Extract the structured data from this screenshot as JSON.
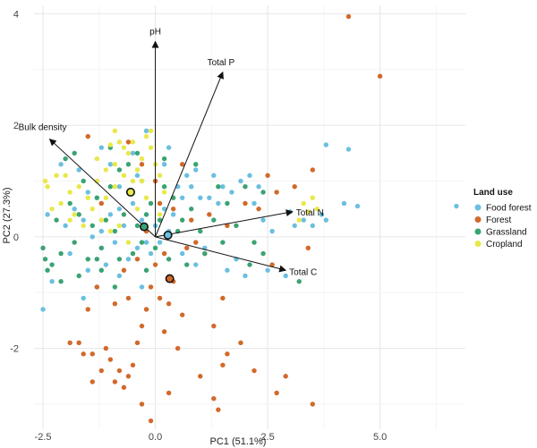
{
  "chart_data": {
    "type": "scatter",
    "subtype": "pca-biplot",
    "xlabel": "PC1 (51.1%)",
    "ylabel": "PC2 (27.3%)",
    "xlim": [
      -2.7,
      6.9
    ],
    "ylim": [
      -3.45,
      4.15
    ],
    "x_ticks": [
      -2.5,
      0.0,
      2.5,
      5.0
    ],
    "x_tick_labels": [
      "-2.5",
      "0.0",
      "2.5",
      "5.0"
    ],
    "y_ticks": [
      -2,
      0,
      2,
      4
    ],
    "y_tick_labels": [
      "-2",
      "0",
      "2",
      "4"
    ],
    "grid": true,
    "legend": {
      "title": "Land use",
      "placement": "right",
      "entries": [
        "Food forest",
        "Forest",
        "Grassland",
        "Cropland"
      ]
    },
    "colors": {
      "Food forest": "#6bbfe0",
      "Forest": "#d2692a",
      "Grassland": "#3aa373",
      "Cropland": "#e8e84a"
    },
    "loadings": [
      {
        "label": "pH",
        "x": 0.0,
        "y": 3.5
      },
      {
        "label": "Total P",
        "x": 1.5,
        "y": 2.95
      },
      {
        "label": "Bulk density",
        "x": -2.35,
        "y": 1.75
      },
      {
        "label": "Total N",
        "x": 3.05,
        "y": 0.45
      },
      {
        "label": "Total C",
        "x": 2.9,
        "y": -0.6
      }
    ],
    "centroids": [
      {
        "group": "Food forest",
        "x": 0.28,
        "y": 0.03
      },
      {
        "group": "Forest",
        "x": 0.32,
        "y": -0.75
      },
      {
        "group": "Grassland",
        "x": -0.25,
        "y": 0.18
      },
      {
        "group": "Cropland",
        "x": -0.55,
        "y": 0.8
      }
    ],
    "series": [
      {
        "name": "Food forest",
        "points": [
          [
            6.7,
            0.55
          ],
          [
            4.3,
            1.57
          ],
          [
            3.8,
            1.65
          ],
          [
            4.5,
            0.55
          ],
          [
            4.2,
            0.6
          ],
          [
            3.7,
            0.4
          ],
          [
            3.8,
            0.3
          ],
          [
            3.5,
            0.2
          ],
          [
            3.3,
            0.3
          ],
          [
            3.0,
            0.45
          ],
          [
            3.1,
            0.2
          ],
          [
            2.6,
            0.1
          ],
          [
            2.4,
            0.3
          ],
          [
            2.2,
            0.6
          ],
          [
            2.1,
            1.1
          ],
          [
            1.9,
            1.0
          ],
          [
            1.7,
            0.8
          ],
          [
            1.5,
            0.9
          ],
          [
            1.4,
            0.6
          ],
          [
            1.2,
            0.7
          ],
          [
            1.0,
            0.7
          ],
          [
            0.8,
            0.9
          ],
          [
            0.7,
            1.1
          ],
          [
            0.6,
            0.7
          ],
          [
            0.5,
            0.9
          ],
          [
            0.4,
            0.4
          ],
          [
            0.3,
            0.1
          ],
          [
            0.2,
            0.5
          ],
          [
            0.1,
            -0.1
          ],
          [
            0.0,
            0.2
          ],
          [
            -0.1,
            -0.3
          ],
          [
            -0.2,
            -0.1
          ],
          [
            -0.3,
            0.3
          ],
          [
            -0.4,
            -0.2
          ],
          [
            -0.5,
            0.6
          ],
          [
            -0.6,
            -0.4
          ],
          [
            -0.7,
            0.2
          ],
          [
            -0.8,
            0.9
          ],
          [
            -0.9,
            -0.1
          ],
          [
            -1.0,
            0.4
          ],
          [
            -1.1,
            -0.5
          ],
          [
            -1.2,
            0.1
          ],
          [
            -1.3,
            1.0
          ],
          [
            -1.4,
            0.0
          ],
          [
            -1.5,
            -0.6
          ],
          [
            -1.6,
            0.3
          ],
          [
            -1.7,
            1.2
          ],
          [
            -1.8,
            0.5
          ],
          [
            -1.9,
            -0.3
          ],
          [
            -2.0,
            0.2
          ],
          [
            -2.1,
            1.3
          ],
          [
            -2.3,
            -0.8
          ],
          [
            -2.4,
            0.4
          ],
          [
            -2.5,
            -1.3
          ],
          [
            1.8,
            -0.4
          ],
          [
            1.6,
            -0.6
          ],
          [
            2.0,
            -0.7
          ],
          [
            2.5,
            -0.6
          ],
          [
            2.9,
            -0.7
          ],
          [
            1.1,
            -0.2
          ],
          [
            0.9,
            -0.5
          ],
          [
            0.6,
            -0.3
          ],
          [
            -0.3,
            -0.9
          ],
          [
            -0.8,
            -0.7
          ],
          [
            -1.3,
            -0.9
          ],
          [
            -1.6,
            -1.1
          ],
          [
            0.3,
            1.6
          ],
          [
            -0.2,
            1.9
          ],
          [
            -0.5,
            1.5
          ],
          [
            -1.0,
            1.3
          ],
          [
            -1.2,
            1.6
          ],
          [
            0.2,
            1.3
          ],
          [
            -0.8,
            0.5
          ],
          [
            -1.5,
            0.8
          ],
          [
            -0.4,
            1.1
          ],
          [
            0.9,
            1.2
          ],
          [
            1.3,
            1.1
          ],
          [
            2.3,
            0.9
          ]
        ]
      },
      {
        "name": "Forest",
        "points": [
          [
            4.3,
            3.95
          ],
          [
            5.0,
            2.88
          ],
          [
            3.5,
            1.2
          ],
          [
            3.1,
            0.9
          ],
          [
            2.7,
            0.8
          ],
          [
            2.5,
            1.1
          ],
          [
            2.3,
            0.5
          ],
          [
            2.6,
            -0.5
          ],
          [
            3.4,
            -0.2
          ],
          [
            3.5,
            -3.0
          ],
          [
            2.7,
            -2.8
          ],
          [
            2.9,
            -2.5
          ],
          [
            2.2,
            -2.4
          ],
          [
            1.5,
            -2.3
          ],
          [
            1.6,
            -2.1
          ],
          [
            1.9,
            -1.9
          ],
          [
            1.3,
            -1.6
          ],
          [
            1.4,
            -3.1
          ],
          [
            1.0,
            -2.5
          ],
          [
            0.6,
            -1.4
          ],
          [
            0.4,
            -0.8
          ],
          [
            0.3,
            -1.2
          ],
          [
            0.2,
            -1.7
          ],
          [
            0.1,
            -1.1
          ],
          [
            0.0,
            -0.5
          ],
          [
            -0.1,
            -0.9
          ],
          [
            -0.2,
            -1.3
          ],
          [
            -0.3,
            -1.6
          ],
          [
            -0.4,
            -1.9
          ],
          [
            -0.5,
            -2.3
          ],
          [
            -0.6,
            -2.5
          ],
          [
            -0.7,
            -2.7
          ],
          [
            -0.8,
            -2.4
          ],
          [
            -0.9,
            -2.6
          ],
          [
            -1.0,
            -2.2
          ],
          [
            -1.1,
            -2.0
          ],
          [
            -1.2,
            -2.4
          ],
          [
            -1.4,
            -2.6
          ],
          [
            -1.6,
            -2.1
          ],
          [
            -1.7,
            -1.9
          ],
          [
            -1.9,
            -1.9
          ],
          [
            -1.5,
            -1.3
          ],
          [
            -1.3,
            -0.9
          ],
          [
            -0.7,
            -0.6
          ],
          [
            -0.4,
            -0.4
          ],
          [
            -0.2,
            0.1
          ],
          [
            0.1,
            0.6
          ],
          [
            0.4,
            0.5
          ],
          [
            0.8,
            0.3
          ],
          [
            1.2,
            0.4
          ],
          [
            1.6,
            0.2
          ],
          [
            2.0,
            0.6
          ],
          [
            0.9,
            -0.1
          ],
          [
            1.1,
            -0.3
          ],
          [
            -0.6,
            1.7
          ],
          [
            -0.3,
            1.3
          ],
          [
            0.6,
            1.3
          ],
          [
            0.0,
            1.0
          ],
          [
            -1.2,
            0.6
          ],
          [
            -1.5,
            1.8
          ],
          [
            -0.9,
            -1.2
          ],
          [
            -0.6,
            -1.1
          ],
          [
            0.2,
            -0.3
          ],
          [
            0.7,
            -0.2
          ],
          [
            1.5,
            -1.1
          ],
          [
            0.5,
            -2.0
          ],
          [
            -0.3,
            -3.0
          ],
          [
            -0.1,
            -3.3
          ],
          [
            0.3,
            -2.8
          ],
          [
            -1.4,
            -2.1
          ],
          [
            1.3,
            -2.9
          ]
        ]
      },
      {
        "name": "Grassland",
        "points": [
          [
            3.2,
            -0.8
          ],
          [
            2.4,
            -0.3
          ],
          [
            2.1,
            -0.5
          ],
          [
            2.2,
            -0.1
          ],
          [
            1.8,
            0.2
          ],
          [
            1.5,
            -0.1
          ],
          [
            1.3,
            0.3
          ],
          [
            1.0,
            0.1
          ],
          [
            0.8,
            0.5
          ],
          [
            0.6,
            0.3
          ],
          [
            0.5,
            0.1
          ],
          [
            0.4,
            0.7
          ],
          [
            0.2,
            0.9
          ],
          [
            0.1,
            0.3
          ],
          [
            0.0,
            -0.2
          ],
          [
            -0.1,
            0.6
          ],
          [
            -0.2,
            0.4
          ],
          [
            -0.3,
            1.0
          ],
          [
            -0.4,
            0.2
          ],
          [
            -0.5,
            -0.3
          ],
          [
            -0.6,
            0.8
          ],
          [
            -0.7,
            0.4
          ],
          [
            -0.8,
            1.2
          ],
          [
            -0.9,
            0.1
          ],
          [
            -1.0,
            0.9
          ],
          [
            -1.1,
            0.3
          ],
          [
            -1.2,
            -0.2
          ],
          [
            -1.3,
            0.7
          ],
          [
            -1.4,
            0.2
          ],
          [
            -1.5,
            -0.4
          ],
          [
            -1.6,
            1.0
          ],
          [
            -1.7,
            0.4
          ],
          [
            -1.8,
            -0.1
          ],
          [
            -1.9,
            0.6
          ],
          [
            -2.0,
            1.4
          ],
          [
            -2.1,
            -0.3
          ],
          [
            -2.2,
            0.3
          ],
          [
            -2.3,
            -0.5
          ],
          [
            -2.5,
            -0.2
          ],
          [
            -2.45,
            -0.4
          ],
          [
            -2.4,
            -0.6
          ],
          [
            -2.1,
            -0.8
          ],
          [
            -1.7,
            -0.7
          ],
          [
            -1.2,
            -0.6
          ],
          [
            -0.8,
            -0.4
          ],
          [
            -0.3,
            -0.1
          ],
          [
            0.3,
            -0.4
          ],
          [
            0.7,
            -0.5
          ],
          [
            1.1,
            -0.3
          ],
          [
            1.6,
            0.6
          ],
          [
            2.0,
            0.9
          ],
          [
            2.4,
            0.8
          ],
          [
            0.2,
            1.4
          ],
          [
            -0.4,
            1.5
          ],
          [
            -1.0,
            1.6
          ],
          [
            -1.8,
            1.5
          ],
          [
            -0.6,
            1.3
          ],
          [
            0.9,
            1.3
          ],
          [
            1.4,
            0.9
          ],
          [
            -1.3,
            -0.4
          ],
          [
            -0.9,
            -0.9
          ],
          [
            -0.2,
            -0.6
          ]
        ]
      },
      {
        "name": "Cropland",
        "points": [
          [
            3.5,
            0.7
          ],
          [
            3.3,
            0.6
          ],
          [
            3.6,
            0.5
          ],
          [
            3.4,
            0.45
          ],
          [
            3.2,
            0.3
          ],
          [
            -0.9,
            1.9
          ],
          [
            -1.0,
            1.65
          ],
          [
            -0.8,
            1.7
          ],
          [
            -0.6,
            1.5
          ],
          [
            -0.4,
            1.2
          ],
          [
            -0.3,
            1.4
          ],
          [
            -0.2,
            1.8
          ],
          [
            -0.1,
            1.6
          ],
          [
            0.0,
            1.3
          ],
          [
            0.1,
            1.1
          ],
          [
            -0.5,
            1.0
          ],
          [
            -0.7,
            1.1
          ],
          [
            -0.9,
            0.9
          ],
          [
            -1.1,
            1.2
          ],
          [
            -1.3,
            1.0
          ],
          [
            -1.5,
            0.7
          ],
          [
            -1.7,
            0.9
          ],
          [
            -1.9,
            0.8
          ],
          [
            -2.1,
            0.6
          ],
          [
            -2.3,
            0.5
          ],
          [
            -2.4,
            0.9
          ],
          [
            -2.2,
            1.1
          ],
          [
            -1.8,
            0.4
          ],
          [
            -1.6,
            0.2
          ],
          [
            -1.4,
            0.5
          ],
          [
            -1.2,
            0.3
          ],
          [
            -1.0,
            0.1
          ],
          [
            -0.8,
            0.2
          ],
          [
            -0.6,
            -0.1
          ],
          [
            -0.4,
            0.5
          ],
          [
            -0.2,
            0.7
          ],
          [
            0.2,
            0.8
          ],
          [
            -2.0,
            1.1
          ],
          [
            -1.3,
            1.4
          ],
          [
            -0.7,
            1.6
          ],
          [
            -0.3,
            1.0
          ],
          [
            -1.1,
            0.7
          ],
          [
            -0.9,
            1.3
          ],
          [
            -1.9,
            0.3
          ],
          [
            -2.45,
            1.0
          ],
          [
            -0.5,
            1.7
          ],
          [
            0.1,
            0.4
          ],
          [
            -0.1,
            1.9
          ]
        ]
      }
    ]
  }
}
